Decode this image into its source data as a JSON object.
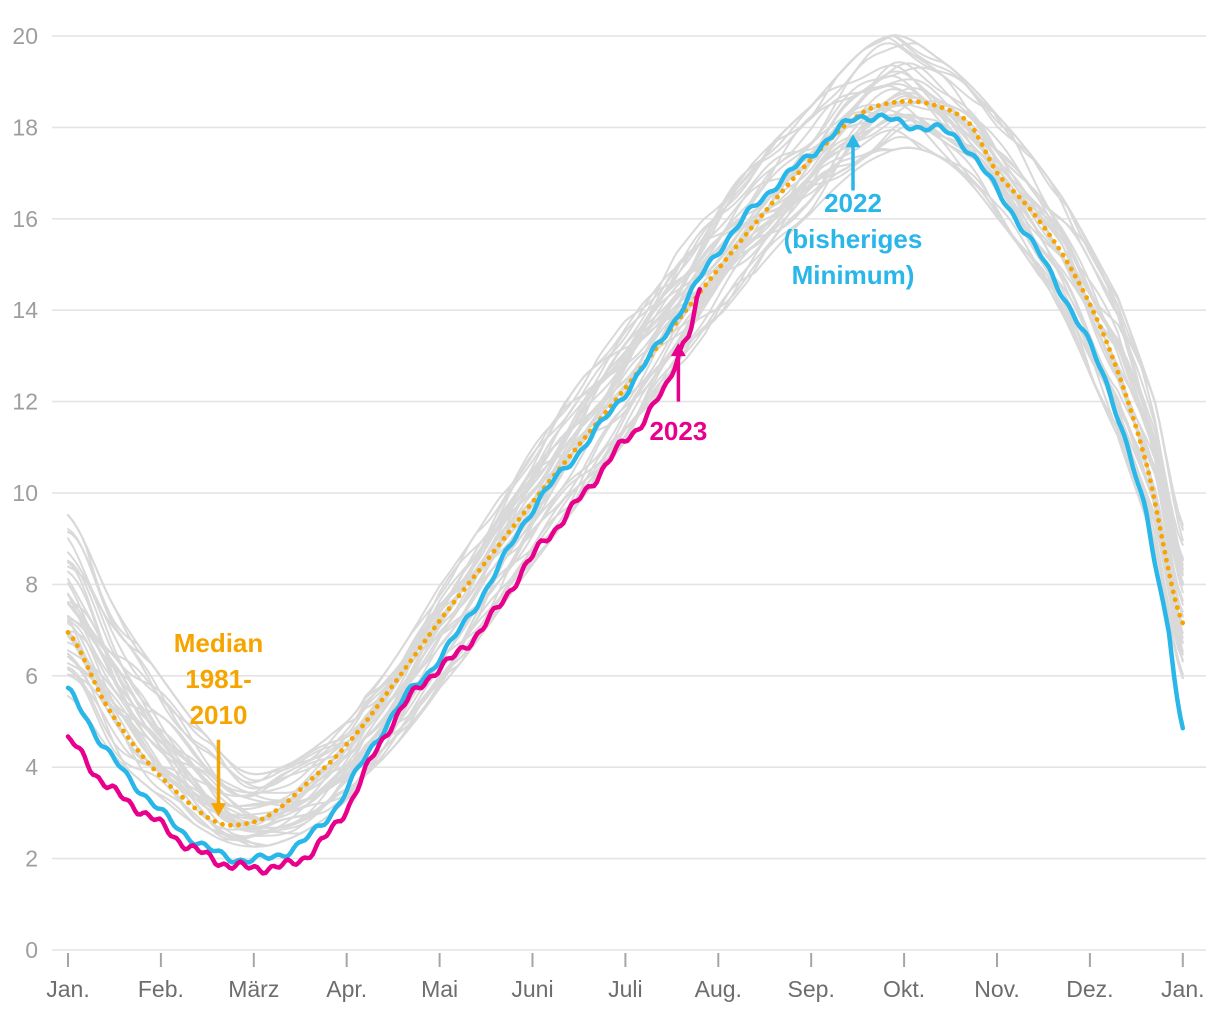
{
  "colors": {
    "background": "#ffffff",
    "gridline": "#e4e4e4",
    "tick": "#a6a6a6",
    "axis_label_y": "#9e9e9e",
    "axis_label_x": "#6d6d6d",
    "gray_year": "#d9d9d9",
    "median_orange": "#f6a400",
    "cyan_2022": "#29b6e8",
    "magenta_2023": "#e8008c"
  },
  "chart_data": {
    "type": "line",
    "title": "",
    "xlabel": "",
    "ylabel": "",
    "x_axis": {
      "tick_labels": [
        "Jan.",
        "Feb.",
        "März",
        "Apr.",
        "Mai",
        "Juni",
        "Juli",
        "Aug.",
        "Sep.",
        "Okt.",
        "Nov.",
        "Dez.",
        "Jan."
      ],
      "range_months": [
        0,
        12
      ]
    },
    "y_axis": {
      "ticks": [
        0,
        2,
        4,
        6,
        8,
        10,
        12,
        14,
        16,
        18,
        20
      ],
      "range": [
        0,
        20
      ],
      "grid": true
    },
    "series": [
      {
        "id": "median",
        "name": "Median 1981-2010",
        "color_key": "median_orange",
        "style": "dotted",
        "dom_name": "median-1981-2010-line",
        "points": [
          [
            0,
            6.95
          ],
          [
            0.4,
            5.4
          ],
          [
            0.8,
            4.25
          ],
          [
            1.2,
            3.4
          ],
          [
            1.6,
            2.8
          ],
          [
            1.9,
            2.76
          ],
          [
            2.2,
            3.0
          ],
          [
            2.6,
            3.7
          ],
          [
            3,
            4.5
          ],
          [
            3.5,
            5.8
          ],
          [
            4,
            7.2
          ],
          [
            4.5,
            8.5
          ],
          [
            5,
            9.8
          ],
          [
            5.5,
            11.05
          ],
          [
            6,
            12.3
          ],
          [
            6.5,
            13.6
          ],
          [
            7,
            14.9
          ],
          [
            7.5,
            16.15
          ],
          [
            8,
            17.3
          ],
          [
            8.5,
            18.25
          ],
          [
            8.9,
            18.55
          ],
          [
            9.3,
            18.5
          ],
          [
            9.7,
            18.1
          ],
          [
            10,
            17.0
          ],
          [
            10.4,
            16.1
          ],
          [
            10.8,
            14.9
          ],
          [
            11.2,
            13.2
          ],
          [
            11.6,
            10.7
          ],
          [
            12,
            7.15
          ]
        ]
      },
      {
        "id": "y2022",
        "name": "2022 (bisheriges Minimum)",
        "color_key": "cyan_2022",
        "style": "solid",
        "dom_name": "line-2022",
        "points": [
          [
            0,
            5.65
          ],
          [
            0.4,
            4.4
          ],
          [
            0.8,
            3.45
          ],
          [
            1.2,
            2.65
          ],
          [
            1.6,
            2.12
          ],
          [
            2.0,
            1.97
          ],
          [
            2.4,
            2.2
          ],
          [
            2.8,
            2.9
          ],
          [
            3.2,
            4.2
          ],
          [
            3.6,
            5.45
          ],
          [
            4,
            6.4
          ],
          [
            4.5,
            7.9
          ],
          [
            5,
            9.65
          ],
          [
            5.5,
            10.9
          ],
          [
            6,
            12.2
          ],
          [
            6.5,
            13.7
          ],
          [
            7,
            15.3
          ],
          [
            7.5,
            16.5
          ],
          [
            8,
            17.4
          ],
          [
            8.4,
            18.1
          ],
          [
            8.7,
            18.25
          ],
          [
            9.0,
            18.05
          ],
          [
            9.4,
            17.95
          ],
          [
            9.7,
            17.5
          ],
          [
            10,
            16.6
          ],
          [
            10.4,
            15.4
          ],
          [
            10.8,
            14.0
          ],
          [
            11.2,
            12.3
          ],
          [
            11.6,
            9.6
          ],
          [
            11.85,
            7.0
          ],
          [
            12,
            4.75
          ]
        ]
      },
      {
        "id": "y2023",
        "name": "2023",
        "color_key": "magenta_2023",
        "style": "solid",
        "dom_name": "line-2023",
        "points": [
          [
            0,
            4.6
          ],
          [
            0.3,
            3.85
          ],
          [
            0.6,
            3.3
          ],
          [
            0.9,
            2.9
          ],
          [
            1.2,
            2.4
          ],
          [
            1.5,
            2.05
          ],
          [
            1.8,
            1.83
          ],
          [
            2.1,
            1.8
          ],
          [
            2.4,
            1.88
          ],
          [
            2.7,
            2.3
          ],
          [
            3.0,
            3.1
          ],
          [
            3.3,
            4.3
          ],
          [
            3.6,
            5.3
          ],
          [
            3.9,
            6.0
          ],
          [
            4.2,
            6.5
          ],
          [
            4.6,
            7.4
          ],
          [
            5.0,
            8.6
          ],
          [
            5.3,
            9.35
          ],
          [
            5.6,
            10.1
          ],
          [
            5.9,
            10.9
          ],
          [
            6.1,
            11.35
          ],
          [
            6.3,
            11.9
          ],
          [
            6.45,
            12.35
          ],
          [
            6.6,
            13.2
          ],
          [
            6.7,
            13.6
          ],
          [
            6.8,
            14.35
          ]
        ]
      }
    ],
    "background_series": {
      "description": "historical years, light gray spaghetti lines",
      "color_key": "gray_year",
      "count": 40,
      "envelope_min": [
        [
          0,
          5.5
        ],
        [
          0.5,
          4.2
        ],
        [
          1,
          3.3
        ],
        [
          1.5,
          2.55
        ],
        [
          1.9,
          2.25
        ],
        [
          2.3,
          2.35
        ],
        [
          2.8,
          2.9
        ],
        [
          3.2,
          3.8
        ],
        [
          4,
          5.7
        ],
        [
          5,
          8.4
        ],
        [
          6,
          11.1
        ],
        [
          7,
          13.8
        ],
        [
          8,
          16.1
        ],
        [
          8.8,
          17.4
        ],
        [
          9.4,
          17.3
        ],
        [
          10,
          16.0
        ],
        [
          10.7,
          13.9
        ],
        [
          11.3,
          11.2
        ],
        [
          11.7,
          8.8
        ],
        [
          12,
          5.9
        ]
      ],
      "envelope_max": [
        [
          0,
          9.4
        ],
        [
          0.5,
          7.4
        ],
        [
          1,
          5.9
        ],
        [
          1.5,
          4.6
        ],
        [
          1.9,
          3.85
        ],
        [
          2.3,
          3.95
        ],
        [
          2.8,
          4.6
        ],
        [
          3.2,
          5.5
        ],
        [
          4,
          7.9
        ],
        [
          5,
          10.9
        ],
        [
          6,
          13.7
        ],
        [
          7,
          16.3
        ],
        [
          8,
          18.4
        ],
        [
          8.8,
          19.9
        ],
        [
          9.4,
          19.4
        ],
        [
          10,
          18.2
        ],
        [
          10.7,
          16.4
        ],
        [
          11.3,
          14.2
        ],
        [
          11.7,
          11.9
        ],
        [
          12,
          9.2
        ]
      ],
      "lines": [
        [
          0.95,
          0.6,
          3.1
        ],
        [
          0.07,
          1.8,
          5.2
        ],
        [
          0.52,
          4.4,
          0.9
        ],
        [
          0.31,
          2.9,
          2.4
        ],
        [
          0.78,
          5.7,
          4.8
        ],
        [
          0.18,
          0.2,
          1.5
        ],
        [
          0.64,
          3.3,
          5.9
        ],
        [
          0.88,
          1.1,
          0.3
        ],
        [
          0.42,
          4.9,
          3.7
        ],
        [
          0.12,
          2.5,
          5.0
        ],
        [
          0.7,
          5.2,
          1.9
        ],
        [
          0.26,
          0.9,
          4.2
        ],
        [
          0.58,
          3.8,
          0.6
        ],
        [
          0.83,
          1.6,
          2.8
        ],
        [
          0.05,
          4.1,
          5.6
        ],
        [
          0.47,
          2.2,
          1.1
        ],
        [
          0.92,
          5.5,
          3.4
        ],
        [
          0.22,
          0.4,
          2.0
        ],
        [
          0.67,
          3.0,
          5.3
        ],
        [
          0.36,
          1.3,
          0.1
        ],
        [
          0.74,
          4.6,
          2.6
        ],
        [
          0.15,
          2.7,
          4.5
        ],
        [
          0.55,
          5.9,
          1.7
        ],
        [
          0.86,
          0.7,
          3.9
        ],
        [
          0.4,
          3.5,
          5.8
        ],
        [
          0.1,
          1.0,
          2.3
        ],
        [
          0.61,
          4.2,
          0.4
        ],
        [
          0.29,
          2.0,
          3.2
        ],
        [
          0.97,
          5.0,
          1.3
        ],
        [
          0.45,
          0.1,
          4.7
        ],
        [
          0.72,
          3.6,
          2.1
        ],
        [
          0.2,
          1.4,
          5.4
        ],
        [
          0.5,
          4.8,
          0.8
        ],
        [
          0.8,
          2.6,
          3.6
        ],
        [
          0.33,
          5.3,
          1.0
        ],
        [
          0.9,
          0.5,
          4.3
        ],
        [
          0.24,
          3.1,
          2.9
        ],
        [
          0.68,
          1.9,
          5.1
        ],
        [
          0.38,
          4.0,
          0.2
        ],
        [
          0.6,
          2.4,
          3.3
        ]
      ]
    },
    "annotations": [
      {
        "id": "annotation-median",
        "lines": [
          "Median",
          "1981-",
          "2010"
        ],
        "color_key": "median_orange",
        "x_month": 1.62,
        "y_start_value": 6.52,
        "arrow": {
          "from_value": 4.6,
          "to_value": 2.93,
          "direction": "down"
        }
      },
      {
        "id": "annotation-2022",
        "lines": [
          "2022",
          "(bisheriges",
          "Minimum)"
        ],
        "color_key": "cyan_2022",
        "x_month": 8.45,
        "y_start_value": 16.15,
        "arrow": {
          "from_value": 16.62,
          "to_value": 17.85,
          "direction": "up"
        }
      },
      {
        "id": "annotation-2023",
        "lines": [
          "2023"
        ],
        "color_key": "magenta_2023",
        "x_month": 6.57,
        "y_start_value": 11.16,
        "arrow": {
          "from_value": 12.0,
          "to_value": 13.28,
          "direction": "up"
        }
      }
    ]
  }
}
